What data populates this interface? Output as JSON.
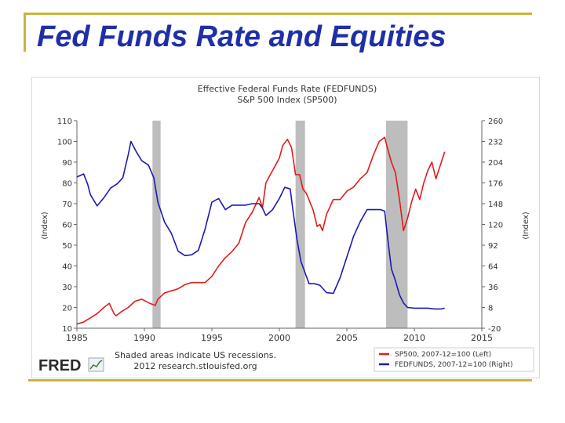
{
  "slide": {
    "title": "Fed Funds Rate and Equities"
  },
  "footer": {
    "note_line1": "Shaded areas indicate US recessions.",
    "note_line2": "2012 research.stlouisfed.org",
    "logo_text": "FRED"
  },
  "colors": {
    "sp500": "#e31b1b",
    "fedfunds": "#1a1ab4",
    "recession": "#bdbdbd",
    "title": "#1f2fa8",
    "frame": "#c8b53a"
  },
  "chart_data": {
    "type": "line",
    "title": "Effective Federal Funds Rate (FEDFUNDS)",
    "subtitle": "S&P 500 Index (SP500)",
    "xlabel": "",
    "ylabel_left": "(Index)",
    "ylabel_right": "(Index)",
    "xlim": [
      1985,
      2015
    ],
    "ylim_left": [
      10,
      110
    ],
    "ylim_right": [
      -20,
      260
    ],
    "x_ticks": [
      1985,
      1990,
      1995,
      2000,
      2005,
      2010,
      2015
    ],
    "y_ticks_left": [
      10,
      20,
      30,
      40,
      50,
      60,
      70,
      80,
      90,
      100,
      110
    ],
    "y_ticks_right": [
      -20,
      8,
      36,
      64,
      92,
      120,
      148,
      176,
      204,
      232,
      260
    ],
    "recessions": [
      [
        1990.6,
        1991.2
      ],
      [
        2001.2,
        2001.9
      ],
      [
        2007.9,
        2009.5
      ]
    ],
    "legend": [
      {
        "label": "SP500, 2007-12=100 (Left)",
        "series": "SP500"
      },
      {
        "label": "FEDFUNDS, 2007-12=100 (Right)",
        "series": "FEDFUNDS"
      }
    ],
    "series": [
      {
        "name": "SP500",
        "axis": "left",
        "color": "#e31b1b",
        "x": [
          1985.0,
          1985.5,
          1986.0,
          1986.5,
          1987.0,
          1987.4,
          1987.75,
          1987.9,
          1988.3,
          1988.8,
          1989.3,
          1989.8,
          1990.4,
          1990.8,
          1991.0,
          1991.5,
          1992.0,
          1992.5,
          1993.0,
          1993.5,
          1994.0,
          1994.5,
          1995.0,
          1995.5,
          1996.0,
          1996.5,
          1997.0,
          1997.5,
          1998.0,
          1998.5,
          1998.75,
          1999.0,
          1999.5,
          2000.0,
          2000.25,
          2000.6,
          2000.9,
          2001.2,
          2001.5,
          2001.75,
          2002.0,
          2002.5,
          2002.8,
          2003.0,
          2003.2,
          2003.5,
          2004.0,
          2004.5,
          2005.0,
          2005.5,
          2006.0,
          2006.5,
          2007.0,
          2007.4,
          2007.8,
          2008.0,
          2008.3,
          2008.6,
          2008.9,
          2009.2,
          2009.5,
          2009.8,
          2010.1,
          2010.4,
          2010.7,
          2011.0,
          2011.3,
          2011.6,
          2011.9,
          2012.1,
          2012.25
        ],
        "values": [
          12,
          13,
          15,
          17,
          20,
          22,
          17,
          16,
          18,
          20,
          23,
          24,
          22,
          21,
          24,
          27,
          28,
          29,
          31,
          32,
          32,
          32,
          35,
          40,
          44,
          47,
          51,
          61,
          66,
          73,
          68,
          80,
          86,
          92,
          98,
          101,
          97,
          84,
          84,
          77,
          75,
          67,
          59,
          60,
          57,
          65,
          72,
          72,
          76,
          78,
          82,
          85,
          94,
          100,
          102,
          97,
          90,
          85,
          72,
          57,
          63,
          71,
          77,
          72,
          80,
          86,
          90,
          82,
          88,
          92,
          95
        ]
      },
      {
        "name": "FEDFUNDS",
        "axis": "right",
        "color": "#1a1ab4",
        "x": [
          1985.0,
          1985.5,
          1985.8,
          1986.0,
          1986.5,
          1987.0,
          1987.5,
          1988.0,
          1988.4,
          1988.8,
          1989.0,
          1989.4,
          1989.8,
          1990.3,
          1990.7,
          1991.0,
          1991.5,
          1992.0,
          1992.5,
          1993.0,
          1993.5,
          1994.0,
          1994.5,
          1995.0,
          1995.5,
          1996.0,
          1996.5,
          1997.0,
          1997.5,
          1998.0,
          1998.5,
          1998.75,
          1999.0,
          1999.5,
          2000.0,
          2000.4,
          2000.8,
          2001.0,
          2001.3,
          2001.6,
          2001.9,
          2002.2,
          2002.6,
          2003.0,
          2003.5,
          2004.0,
          2004.5,
          2005.0,
          2005.5,
          2006.0,
          2006.5,
          2007.0,
          2007.5,
          2007.8,
          2008.0,
          2008.3,
          2008.6,
          2008.9,
          2009.2,
          2009.5,
          2010.0,
          2010.5,
          2011.0,
          2011.5,
          2012.0,
          2012.25
        ],
        "values": [
          184,
          188,
          174,
          160,
          145,
          156,
          169,
          175,
          183,
          214,
          232,
          218,
          206,
          200,
          183,
          150,
          123,
          108,
          84,
          78,
          79,
          85,
          114,
          150,
          155,
          140,
          146,
          146,
          146,
          148,
          148,
          142,
          132,
          140,
          155,
          170,
          168,
          140,
          100,
          70,
          55,
          40,
          40,
          38,
          28,
          27,
          48,
          76,
          104,
          124,
          140,
          140,
          140,
          138,
          105,
          60,
          44,
          25,
          14,
          8,
          7,
          7,
          7,
          6,
          6,
          7
        ]
      }
    ]
  }
}
